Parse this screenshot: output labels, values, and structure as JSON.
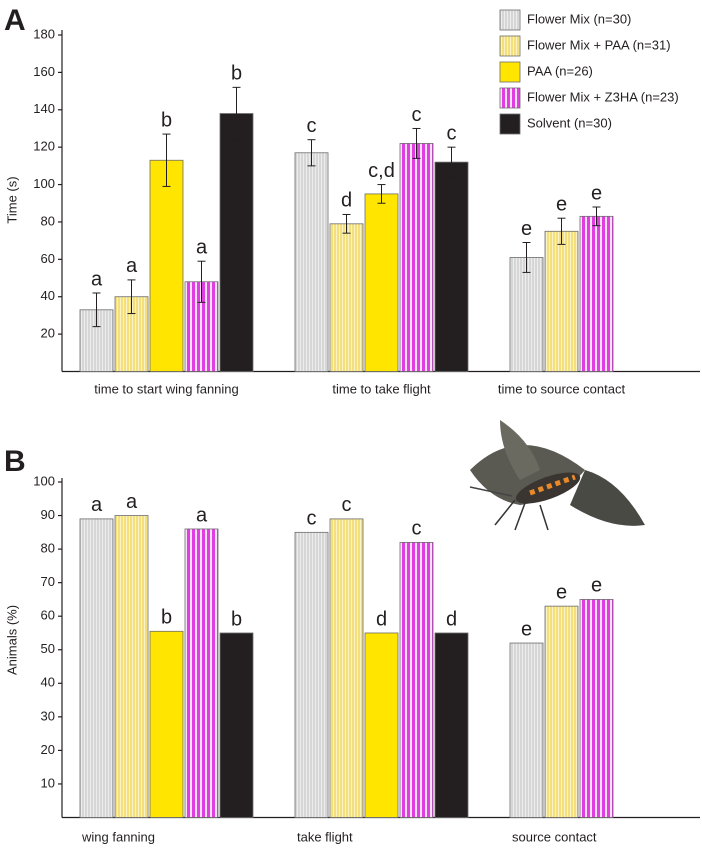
{
  "chart_data": [
    {
      "type": "bar",
      "panel": "A",
      "ylabel": "Time (s)",
      "categories": [
        "time to start wing fanning",
        "time to take flight",
        "time to source contact"
      ],
      "ylim": [
        0,
        180
      ],
      "yticks": [
        20,
        40,
        60,
        80,
        100,
        120,
        140,
        160,
        180
      ],
      "legend": "top-right",
      "series": [
        {
          "name": "Flower Mix (n=30)",
          "color": "#d6d6d6",
          "hatch": true,
          "values": [
            33,
            117,
            61
          ],
          "errors": [
            9,
            7,
            8
          ],
          "letters": [
            "a",
            "c",
            "e"
          ]
        },
        {
          "name": "Flower Mix + PAA (n=31)",
          "color": "#f3df7c",
          "hatch": true,
          "values": [
            40,
            79,
            75
          ],
          "errors": [
            9,
            5,
            7
          ],
          "letters": [
            "a",
            "d",
            "e"
          ]
        },
        {
          "name": "PAA (n=26)",
          "color": "#ffe500",
          "hatch": false,
          "values": [
            113,
            95,
            null
          ],
          "errors": [
            14,
            5,
            null
          ],
          "letters": [
            "b",
            "c,d",
            null
          ]
        },
        {
          "name": "Flower Mix + Z3HA (n=23)",
          "color": "#e03ee0",
          "hatch": true,
          "values": [
            48,
            122,
            83
          ],
          "errors": [
            11,
            8,
            5
          ],
          "letters": [
            "a",
            "c",
            "e"
          ]
        },
        {
          "name": "Solvent (n=30)",
          "color": "#231f20",
          "hatch": false,
          "values": [
            138,
            112,
            null
          ],
          "errors": [
            14,
            8,
            null
          ],
          "letters": [
            "b",
            "c",
            null
          ]
        }
      ]
    },
    {
      "type": "bar",
      "panel": "B",
      "ylabel": "Animals (%)",
      "categories": [
        "wing fanning",
        "take flight",
        "source contact"
      ],
      "ylim": [
        0,
        100
      ],
      "yticks": [
        10,
        20,
        30,
        40,
        50,
        60,
        70,
        80,
        90,
        100
      ],
      "series": [
        {
          "color": "#d6d6d6",
          "hatch": true,
          "values": [
            89,
            85,
            52
          ],
          "letters": [
            "a",
            "c",
            "e"
          ]
        },
        {
          "color": "#f3df7c",
          "hatch": true,
          "values": [
            90,
            89,
            63
          ],
          "letters": [
            "a",
            "c",
            "e"
          ]
        },
        {
          "color": "#ffe500",
          "hatch": false,
          "values": [
            55.5,
            55,
            null
          ],
          "letters": [
            "b",
            "d",
            null
          ]
        },
        {
          "color": "#e03ee0",
          "hatch": true,
          "values": [
            86,
            82,
            65
          ],
          "letters": [
            "a",
            "c",
            "e"
          ]
        },
        {
          "color": "#231f20",
          "hatch": false,
          "values": [
            55,
            55,
            null
          ],
          "letters": [
            "b",
            "d",
            null
          ]
        }
      ]
    }
  ]
}
